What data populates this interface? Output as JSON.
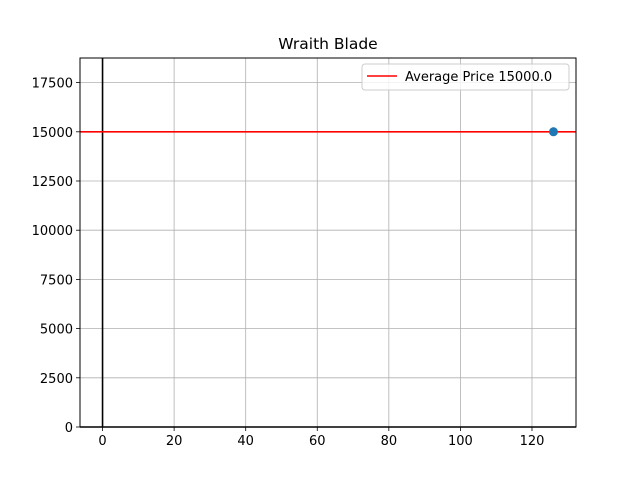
{
  "chart_data": {
    "type": "scatter",
    "title": "Wraith Blade",
    "xlabel": "",
    "ylabel": "",
    "xlim": [
      -6.3,
      132.3
    ],
    "ylim": [
      0,
      18750
    ],
    "xticks": [
      0,
      20,
      40,
      60,
      80,
      100,
      120
    ],
    "yticks": [
      0,
      2500,
      5000,
      7500,
      10000,
      12500,
      15000,
      17500
    ],
    "grid": true,
    "legend_position": "top-right",
    "series": [
      {
        "points": [
          {
            "x": 126,
            "y": 15000
          }
        ],
        "color": "#1f77b4"
      }
    ],
    "average_line": {
      "label": "Average Price 15000.0",
      "y": 15000,
      "color": "#ff0000"
    },
    "reference_lines": {
      "vertical_x": 0,
      "horizontal_y": 0,
      "color": "#000000"
    }
  }
}
